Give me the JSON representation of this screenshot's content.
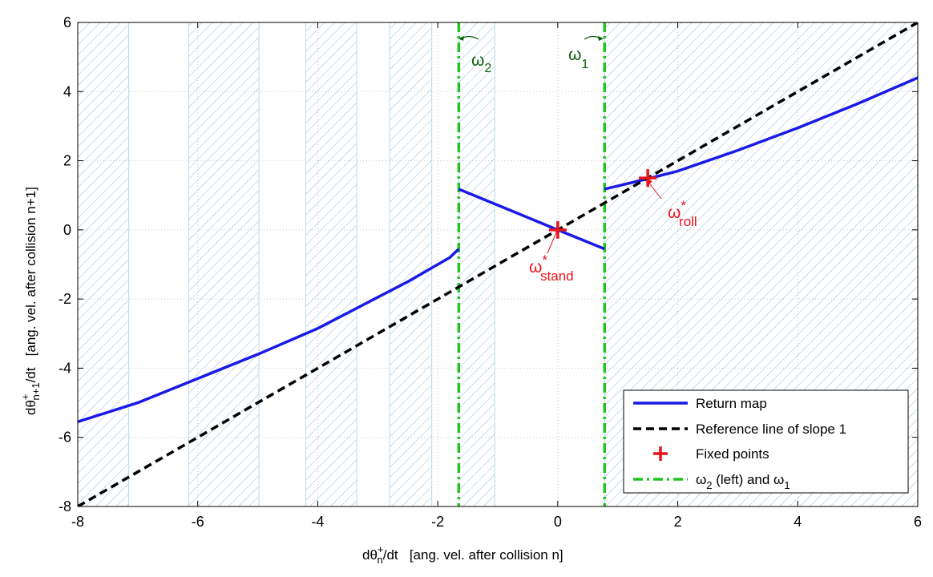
{
  "chart_data": {
    "type": "line",
    "xlabel": {
      "main": "dθ",
      "sup": "+",
      "sub": "n",
      "tail": "/dt   [ang. vel. after collision n]"
    },
    "ylabel": {
      "main": "dθ",
      "sup": "+",
      "sub": "n+1",
      "tail": "/dt   [ang. vel. after collision n+1]"
    },
    "xlim": [
      -8,
      6
    ],
    "ylim": [
      -8,
      6
    ],
    "xticks": [
      -8,
      -6,
      -4,
      -2,
      0,
      2,
      4,
      6
    ],
    "yticks": [
      -8,
      -6,
      -4,
      -2,
      0,
      2,
      4,
      6
    ],
    "grid": true,
    "legend_position": "bottom-right",
    "omega2": -1.65,
    "omega1": 0.78,
    "shaded_bands": [
      [
        -8,
        -7.15
      ],
      [
        -6.15,
        -4.98
      ],
      [
        -4.2,
        -3.35
      ],
      [
        -2.8,
        -2.1
      ],
      [
        -1.65,
        -1.05
      ],
      [
        0.78,
        6
      ]
    ],
    "series": [
      {
        "name": "Return map",
        "color": "#1a1ae6",
        "style": "solid",
        "segments": [
          [
            [
              -8,
              -5.55
            ],
            [
              -7,
              -5.0
            ],
            [
              -6,
              -4.3
            ],
            [
              -5,
              -3.6
            ],
            [
              -4,
              -2.85
            ],
            [
              -3,
              -1.95
            ],
            [
              -2.5,
              -1.5
            ],
            [
              -2.0,
              -1.0
            ],
            [
              -1.8,
              -0.8
            ],
            [
              -1.65,
              -0.55
            ]
          ],
          [
            [
              -1.65,
              1.18
            ],
            [
              0,
              0
            ],
            [
              0.78,
              -0.55
            ]
          ],
          [
            [
              0.78,
              1.18
            ],
            [
              1,
              1.27
            ],
            [
              1.5,
              1.48
            ],
            [
              2,
              1.7
            ],
            [
              3,
              2.3
            ],
            [
              4,
              2.95
            ],
            [
              5,
              3.65
            ],
            [
              6,
              4.4
            ]
          ]
        ]
      },
      {
        "name": "Reference line of slope 1",
        "color": "#000000",
        "style": "dashed",
        "segments": [
          [
            [
              -8,
              -8
            ],
            [
              6,
              6
            ]
          ]
        ]
      },
      {
        "name": "Fixed points",
        "color": "#e8141b",
        "style": "marker",
        "points": [
          [
            0,
            0
          ],
          [
            1.5,
            1.5
          ]
        ]
      },
      {
        "name": "ω₂ (left) and ω₁",
        "color": "#22c422",
        "style": "dashdot"
      }
    ],
    "annotations": [
      {
        "id": "omega2",
        "base": "ω",
        "sub": "2"
      },
      {
        "id": "omega1",
        "base": "ω",
        "sub": "1"
      },
      {
        "id": "stand",
        "base": "ω",
        "sup": "*",
        "sub": "stand"
      },
      {
        "id": "roll",
        "base": "ω",
        "sup": "*",
        "sub": "roll"
      }
    ],
    "legend": [
      {
        "label": "Return map"
      },
      {
        "label": "Reference line of slope 1"
      },
      {
        "label": "Fixed points"
      },
      {
        "label_main": "ω",
        "label_sub": "2",
        "label_tail": " (left) and ω",
        "label_sub2": "1"
      }
    ]
  }
}
